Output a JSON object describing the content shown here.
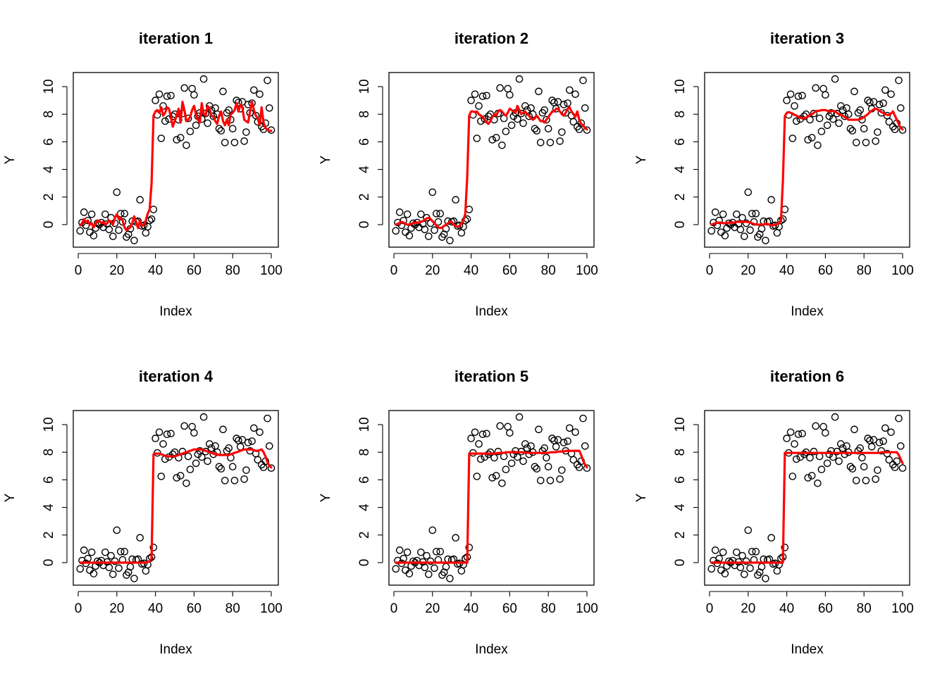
{
  "chart_data": {
    "type": "scatter",
    "shared": {
      "xlabel": "Index",
      "ylabel": "Y",
      "xlim": [
        1,
        100
      ],
      "ylim": [
        -1.2,
        10.6
      ],
      "xticks": [
        0,
        20,
        40,
        60,
        80,
        100
      ],
      "yticks": [
        0,
        2,
        4,
        6,
        8,
        10
      ],
      "point_style": "open circle",
      "fit_color": "#ff0000",
      "points_y": [
        -0.45,
        0.15,
        0.9,
        -0.05,
        0.3,
        -0.55,
        0.75,
        -0.8,
        -0.25,
        0.1,
        0.0,
        0.15,
        -0.2,
        0.75,
        0.05,
        -0.35,
        0.5,
        -0.85,
        0.1,
        2.35,
        -0.4,
        0.8,
        0.2,
        0.8,
        -0.9,
        -0.7,
        -0.3,
        0.25,
        -1.15,
        0.2,
        0.25,
        1.8,
        -0.1,
        -0.05,
        -0.6,
        -0.15,
        0.3,
        0.4,
        1.1,
        9.0,
        7.95,
        9.45,
        6.25,
        8.6,
        7.5,
        9.3,
        7.65,
        9.35,
        7.85,
        8.0,
        6.15,
        7.6,
        6.3,
        8.05,
        9.9,
        5.75,
        7.7,
        6.75,
        9.85,
        9.4,
        7.2,
        7.85,
        8.1,
        7.65,
        10.55,
        8.05,
        7.35,
        8.6,
        8.3,
        7.85,
        8.45,
        8.0,
        6.95,
        6.8,
        9.65,
        5.95,
        8.1,
        8.3,
        7.6,
        6.95,
        5.95,
        9.0,
        8.85,
        8.4,
        8.9,
        6.05,
        6.7,
        8.7,
        8.1,
        8.8,
        9.75,
        7.9,
        7.45,
        9.45,
        7.1,
        6.9,
        7.35,
        10.45,
        8.45,
        6.85
      ]
    },
    "panels": [
      {
        "title": "iteration 1",
        "fit": [
          -0.05,
          0.1,
          0.4,
          0.15,
          0.3,
          0.0,
          0.1,
          -0.2,
          0.05,
          0.3,
          0.25,
          0.1,
          0.2,
          0.0,
          0.1,
          0.3,
          0.2,
          0.0,
          0.5,
          0.75,
          0.4,
          0.5,
          0.3,
          -0.2,
          -0.4,
          -0.3,
          -0.2,
          0.1,
          0.6,
          0.2,
          -0.25,
          0.3,
          -0.1,
          0.0,
          0.3,
          0.8,
          1.1,
          3.0,
          7.9,
          8.2,
          8.3,
          8.1,
          8.5,
          7.9,
          8.1,
          8.5,
          8.4,
          7.8,
          7.1,
          7.5,
          7.9,
          8.4,
          7.4,
          8.9,
          8.3,
          7.5,
          7.6,
          7.8,
          8.3,
          8.6,
          8.0,
          7.6,
          7.4,
          8.8,
          8.0,
          7.9,
          8.6,
          8.4,
          7.9,
          7.8,
          7.5,
          7.3,
          7.9,
          8.2,
          7.5,
          7.2,
          7.6,
          7.2,
          8.0,
          8.1,
          8.3,
          8.8,
          8.2,
          8.7,
          8.5,
          7.6,
          7.5,
          7.4,
          8.2,
          8.9,
          8.3,
          7.9,
          7.7,
          7.2,
          8.5,
          7.4,
          7.0,
          6.9,
          6.8,
          6.8
        ]
      },
      {
        "title": "iteration 2",
        "fit": [
          0.0,
          0.05,
          0.15,
          0.2,
          0.15,
          0.05,
          0.0,
          0.0,
          0.05,
          0.1,
          0.15,
          0.15,
          0.15,
          0.2,
          0.25,
          0.35,
          0.45,
          0.5,
          0.4,
          0.25,
          0.1,
          -0.05,
          -0.2,
          -0.25,
          -0.2,
          -0.1,
          0.0,
          0.1,
          0.2,
          0.2,
          0.0,
          -0.1,
          -0.15,
          -0.1,
          0.1,
          0.3,
          0.8,
          3.5,
          7.9,
          8.2,
          8.2,
          8.15,
          8.2,
          8.0,
          7.9,
          7.8,
          7.6,
          7.4,
          7.3,
          7.5,
          7.8,
          8.0,
          7.9,
          8.2,
          8.3,
          8.2,
          8.0,
          7.9,
          8.1,
          8.4,
          8.3,
          8.2,
          8.1,
          8.6,
          8.3,
          8.0,
          8.1,
          8.2,
          8.0,
          7.9,
          7.7,
          7.6,
          7.7,
          7.9,
          7.7,
          7.5,
          7.5,
          7.4,
          7.6,
          7.8,
          8.0,
          8.2,
          8.2,
          8.4,
          8.4,
          8.2,
          8.0,
          7.9,
          8.1,
          8.4,
          8.5,
          8.2,
          8.0,
          7.8,
          8.2,
          7.6,
          7.3,
          7.2,
          7.0,
          6.9
        ]
      },
      {
        "title": "iteration 3",
        "fit": [
          0.0,
          0.05,
          0.1,
          0.15,
          0.15,
          0.15,
          0.1,
          0.1,
          0.1,
          0.15,
          0.15,
          0.15,
          0.15,
          0.2,
          0.2,
          0.2,
          0.2,
          0.2,
          0.2,
          0.2,
          0.15,
          0.1,
          0.05,
          0.0,
          0.0,
          0.0,
          0.0,
          0.0,
          0.05,
          0.05,
          0.0,
          -0.05,
          -0.05,
          0.0,
          0.05,
          0.1,
          0.3,
          3.2,
          7.85,
          8.1,
          8.15,
          8.1,
          8.05,
          7.95,
          7.9,
          7.8,
          7.75,
          7.7,
          7.7,
          7.75,
          7.85,
          7.95,
          8.0,
          8.1,
          8.2,
          8.25,
          8.25,
          8.3,
          8.3,
          8.3,
          8.25,
          8.2,
          8.2,
          8.25,
          8.2,
          8.1,
          8.0,
          7.95,
          7.9,
          7.8,
          7.7,
          7.6,
          7.6,
          7.6,
          7.6,
          7.6,
          7.6,
          7.65,
          7.7,
          7.8,
          7.9,
          8.0,
          8.15,
          8.25,
          8.35,
          8.4,
          8.35,
          8.25,
          8.15,
          8.1,
          8.0,
          7.95,
          7.95,
          8.05,
          8.2,
          7.9,
          7.6,
          7.3,
          7.0,
          6.9
        ]
      },
      {
        "title": "iteration 4",
        "fit": [
          0.0,
          0.0,
          0.0,
          0.0,
          0.0,
          0.0,
          0.0,
          0.0,
          0.0,
          0.0,
          0.0,
          0.0,
          0.0,
          0.0,
          0.0,
          0.0,
          0.0,
          0.0,
          0.0,
          0.0,
          0.0,
          0.0,
          0.0,
          0.0,
          0.0,
          0.0,
          0.0,
          0.0,
          0.0,
          0.0,
          0.0,
          0.0,
          0.0,
          0.0,
          0.0,
          0.05,
          0.1,
          0.3,
          7.85,
          7.9,
          7.9,
          7.9,
          7.85,
          7.8,
          7.75,
          7.7,
          7.7,
          7.7,
          7.7,
          7.7,
          7.75,
          7.8,
          7.85,
          7.9,
          7.95,
          8.0,
          8.05,
          8.1,
          8.15,
          8.2,
          8.2,
          8.2,
          8.2,
          8.2,
          8.15,
          8.1,
          8.05,
          8.0,
          7.95,
          7.9,
          7.85,
          7.85,
          7.8,
          7.8,
          7.8,
          7.8,
          7.8,
          7.8,
          7.85,
          7.9,
          7.95,
          8.0,
          8.05,
          8.1,
          8.15,
          8.2,
          8.2,
          8.2,
          8.2,
          8.2,
          8.15,
          8.1,
          8.1,
          8.15,
          8.2,
          8.0,
          7.7,
          7.3,
          7.0,
          6.9
        ]
      },
      {
        "title": "iteration 5",
        "fit": [
          0.0,
          0.0,
          0.0,
          0.0,
          0.0,
          0.0,
          0.0,
          0.0,
          0.0,
          0.0,
          0.0,
          0.0,
          0.0,
          0.0,
          0.0,
          0.0,
          0.0,
          0.0,
          0.0,
          0.0,
          0.0,
          0.0,
          0.0,
          0.0,
          0.0,
          0.0,
          0.0,
          0.0,
          0.0,
          0.0,
          0.0,
          0.0,
          0.0,
          0.0,
          0.0,
          0.0,
          0.0,
          0.0,
          7.9,
          7.9,
          7.9,
          7.9,
          7.9,
          7.9,
          7.9,
          7.9,
          7.9,
          7.9,
          7.9,
          7.9,
          7.9,
          7.9,
          7.9,
          7.95,
          7.95,
          7.95,
          7.95,
          8.0,
          8.0,
          8.0,
          8.0,
          8.0,
          8.0,
          8.0,
          8.0,
          8.0,
          8.0,
          7.95,
          7.95,
          7.95,
          7.95,
          7.95,
          7.95,
          7.95,
          7.95,
          7.95,
          7.95,
          7.95,
          7.95,
          7.95,
          8.0,
          8.0,
          8.0,
          8.0,
          8.05,
          8.05,
          8.05,
          8.05,
          8.1,
          8.1,
          8.1,
          8.1,
          8.1,
          8.1,
          8.1,
          8.1,
          7.8,
          7.4,
          7.1,
          6.9
        ]
      },
      {
        "title": "iteration 6",
        "fit": [
          0.0,
          0.0,
          0.0,
          0.0,
          0.0,
          0.0,
          0.0,
          0.0,
          0.0,
          0.0,
          0.0,
          0.0,
          0.0,
          0.0,
          0.0,
          0.0,
          0.0,
          0.0,
          0.0,
          0.0,
          0.0,
          0.0,
          0.0,
          0.0,
          0.0,
          0.0,
          0.0,
          0.0,
          0.0,
          0.0,
          0.0,
          0.0,
          0.0,
          0.0,
          0.0,
          0.0,
          0.0,
          0.0,
          7.95,
          7.95,
          7.95,
          7.95,
          7.95,
          7.95,
          7.95,
          7.95,
          7.95,
          7.95,
          7.95,
          7.95,
          7.95,
          7.95,
          7.95,
          7.95,
          7.95,
          7.95,
          7.95,
          7.95,
          7.95,
          7.95,
          7.95,
          7.95,
          7.95,
          7.95,
          7.95,
          7.95,
          7.95,
          7.95,
          7.95,
          7.95,
          7.95,
          7.95,
          7.95,
          7.95,
          7.95,
          7.95,
          7.95,
          7.95,
          7.95,
          7.95,
          7.95,
          7.95,
          7.95,
          7.95,
          7.95,
          7.95,
          7.95,
          7.95,
          8.0,
          8.0,
          8.0,
          8.0,
          8.0,
          8.0,
          8.0,
          8.0,
          8.0,
          7.8,
          7.5,
          7.2
        ]
      }
    ]
  }
}
